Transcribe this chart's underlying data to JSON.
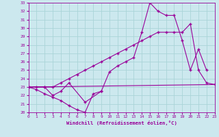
{
  "xlabel": "Windchill (Refroidissement éolien,°C)",
  "bg_color": "#cce8ee",
  "line_color": "#990099",
  "grid_color": "#aad4d8",
  "xmin": 0,
  "xmax": 23,
  "ymin": 20,
  "ymax": 33,
  "line1_x": [
    0,
    1,
    2,
    3,
    4,
    5,
    6,
    7,
    8,
    9
  ],
  "line1_y": [
    23.0,
    22.7,
    22.2,
    21.8,
    21.4,
    20.8,
    20.3,
    20.0,
    22.2,
    22.5
  ],
  "line2_x": [
    0,
    23
  ],
  "line2_y": [
    23.0,
    23.3
  ],
  "line3_x": [
    0,
    1,
    2,
    3,
    4,
    5,
    6,
    7,
    8,
    9,
    10,
    11,
    12,
    13,
    14,
    15,
    16,
    17,
    18,
    19,
    20,
    21,
    22,
    23
  ],
  "line3_y": [
    23.0,
    23.0,
    23.0,
    23.0,
    23.5,
    24.0,
    24.5,
    25.0,
    25.5,
    26.0,
    26.5,
    27.0,
    27.5,
    28.0,
    28.5,
    29.0,
    29.5,
    29.5,
    29.5,
    29.5,
    30.5,
    25.0,
    23.5,
    23.3
  ],
  "line4_x": [
    0,
    2,
    3,
    4,
    5,
    7,
    9,
    10,
    11,
    12,
    13,
    14,
    15,
    16,
    17,
    18,
    19,
    20,
    21,
    22
  ],
  "line4_y": [
    23.0,
    23.0,
    22.0,
    22.5,
    23.5,
    21.2,
    22.5,
    24.8,
    25.5,
    26.0,
    26.5,
    29.5,
    33.0,
    32.0,
    31.5,
    31.5,
    28.5,
    25.0,
    27.5,
    25.0
  ]
}
